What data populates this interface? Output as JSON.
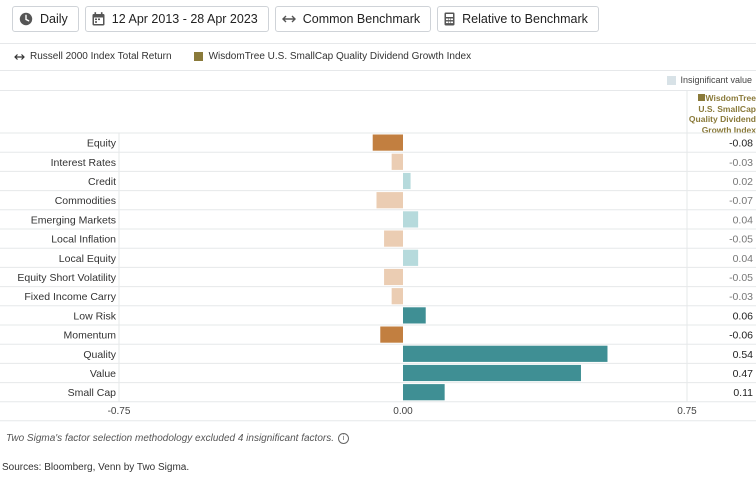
{
  "toolbar": {
    "frequency": "Daily",
    "date_range": "12 Apr 2013 - 28 Apr 2023",
    "benchmark": "Common Benchmark",
    "relative": "Relative to Benchmark"
  },
  "legend": {
    "benchmark_name": "Russell 2000 Index Total Return",
    "index_name": "WisdomTree U.S. SmallCap Quality Dividend Growth Index"
  },
  "insignificant_label": "Insignificant value",
  "column_header": "WisdomTree U.S. SmallCap Quality Dividend Growth Index",
  "colors": {
    "positive_significant": "#3f8f94",
    "negative_significant": "#c27f40",
    "positive_insignificant": "#b6dadc",
    "negative_insignificant": "#ebcdb3",
    "value_significant": "#222222",
    "value_insignificant": "#777777"
  },
  "chart_data": {
    "type": "bar",
    "orientation": "horizontal",
    "categories": [
      "Equity",
      "Interest Rates",
      "Credit",
      "Commodities",
      "Emerging Markets",
      "Local Inflation",
      "Local Equity",
      "Equity Short Volatility",
      "Fixed Income Carry",
      "Low Risk",
      "Momentum",
      "Quality",
      "Value",
      "Small Cap"
    ],
    "values": [
      -0.08,
      -0.03,
      0.02,
      -0.07,
      0.04,
      -0.05,
      0.04,
      -0.05,
      -0.03,
      0.06,
      -0.06,
      0.54,
      0.47,
      0.11
    ],
    "value_labels": [
      "-0.08",
      "-0.03",
      "0.02",
      "-0.07",
      "0.04",
      "-0.05",
      "0.04",
      "-0.05",
      "-0.03",
      "0.06",
      "-0.06",
      "0.54",
      "0.47",
      "0.11"
    ],
    "significant": [
      true,
      false,
      false,
      false,
      false,
      false,
      false,
      false,
      false,
      true,
      true,
      true,
      true,
      true
    ],
    "xlim": [
      -0.75,
      0.75
    ],
    "xticks": [
      "-0.75",
      "0.00",
      "0.75"
    ]
  },
  "footnote": "Two Sigma's factor selection methodology excluded 4 insignificant factors.",
  "sources": "Sources: Bloomberg, Venn by Two Sigma."
}
